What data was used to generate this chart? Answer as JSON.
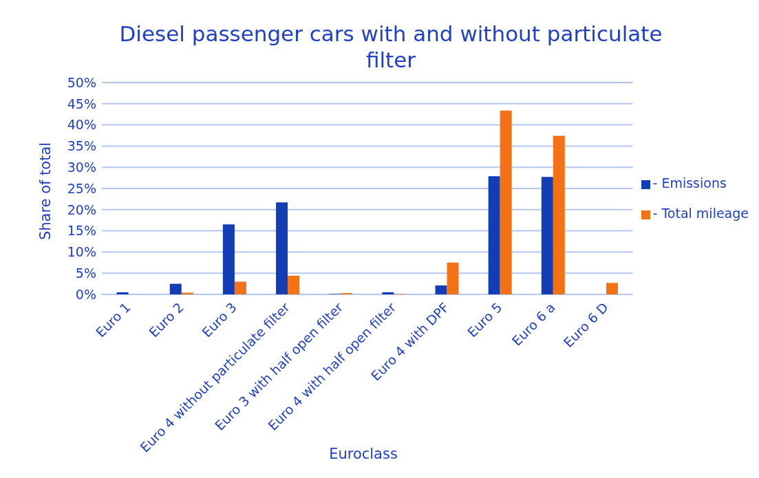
{
  "chart_data": {
    "type": "bar",
    "title": "Diesel passenger cars with and without particulate filter",
    "xlabel": "Euroclass",
    "ylabel": "Share of total",
    "categories": [
      "Euro 1",
      "Euro 2",
      "Euro 3",
      "Euro 4 without particulate filter",
      "Euro 3 with half open filter",
      "Euro 4 with half open filter",
      "Euro 4 with DPF",
      "Euro 5",
      "Euro 6 a",
      "Euro 6 D"
    ],
    "series": [
      {
        "name": "- Emissions",
        "color": "#123db5",
        "values": [
          0.5,
          2.5,
          16.5,
          21.7,
          0.1,
          0.5,
          2.1,
          27.9,
          27.7,
          0
        ]
      },
      {
        "name": "- Total mileage",
        "color": "#f47216",
        "values": [
          0,
          0.4,
          3.0,
          4.4,
          0.3,
          0.1,
          7.5,
          43.4,
          37.4,
          2.7
        ]
      }
    ],
    "ylim": [
      0,
      50
    ],
    "yticks": [
      {
        "value": 0,
        "label": "0%"
      },
      {
        "value": 5,
        "label": "5%"
      },
      {
        "value": 10,
        "label": "10%"
      },
      {
        "value": 15,
        "label": "15%"
      },
      {
        "value": 20,
        "label": "20%"
      },
      {
        "value": 25,
        "label": "25%"
      },
      {
        "value": 30,
        "label": "30%"
      },
      {
        "value": 35,
        "label": "35%"
      },
      {
        "value": 40,
        "label": "40%"
      },
      {
        "value": 45,
        "label": "45%"
      },
      {
        "value": 50,
        "label": "50%"
      }
    ],
    "grid": "y",
    "legend": "right"
  }
}
